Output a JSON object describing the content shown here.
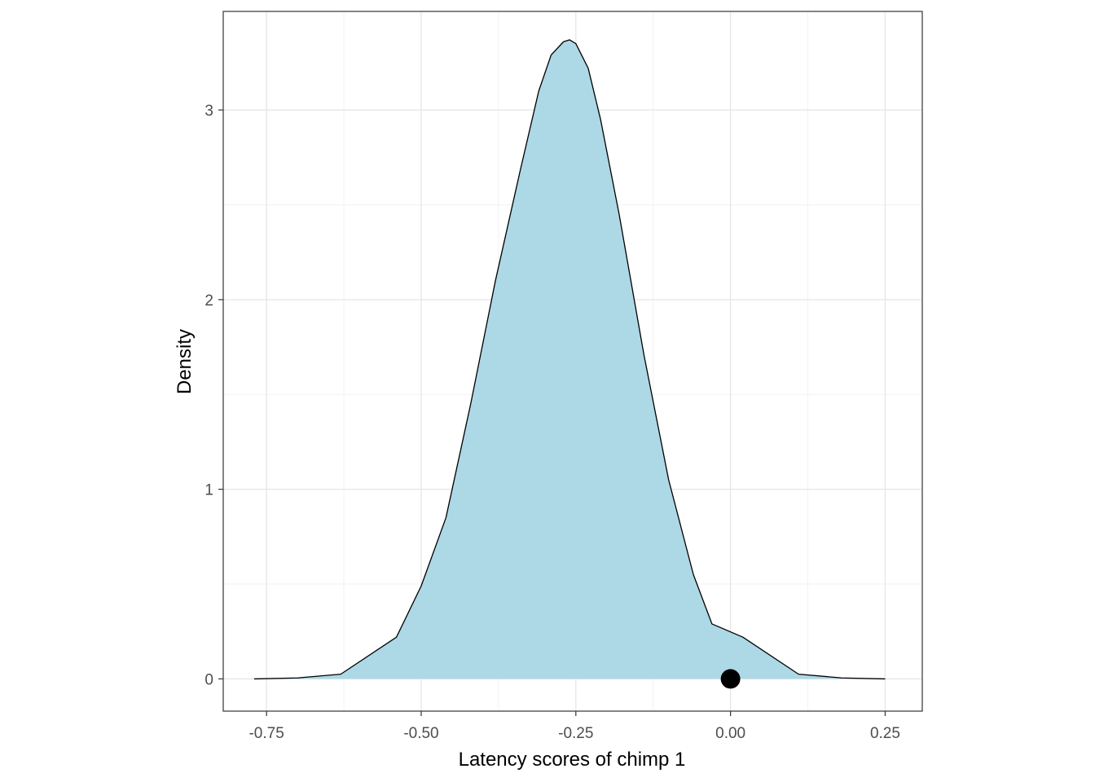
{
  "chart_data": {
    "type": "area",
    "xlabel": "Latency scores of chimp 1",
    "ylabel": "Density",
    "xlim": [
      -0.82,
      0.31
    ],
    "ylim": [
      -0.17,
      3.52
    ],
    "x_major_ticks": [
      -0.75,
      -0.5,
      -0.25,
      0.0,
      0.25
    ],
    "x_tick_labels": [
      "-0.75",
      "-0.50",
      "-0.25",
      "0.00",
      "0.25"
    ],
    "x_minor_ticks": [
      -0.625,
      -0.375,
      -0.125,
      0.125
    ],
    "y_major_ticks": [
      0,
      1,
      2,
      3
    ],
    "y_tick_labels": [
      "0",
      "1",
      "2",
      "3"
    ],
    "y_minor_ticks": [
      0.5,
      1.5,
      2.5
    ],
    "grid": true,
    "fill_color": "#add8e6",
    "line_color": "#000000",
    "series": [
      {
        "x": [
          -0.77,
          -0.7,
          -0.63,
          -0.54,
          -0.5,
          -0.46,
          -0.42,
          -0.38,
          -0.34,
          -0.31,
          -0.29,
          -0.27,
          -0.26,
          -0.25,
          -0.23,
          -0.21,
          -0.18,
          -0.14,
          -0.1,
          -0.06,
          -0.03,
          0.02,
          0.11,
          0.18,
          0.25
        ],
        "y": [
          0.0,
          0.005,
          0.025,
          0.22,
          0.49,
          0.85,
          1.45,
          2.1,
          2.68,
          3.1,
          3.29,
          3.36,
          3.37,
          3.35,
          3.22,
          2.95,
          2.45,
          1.71,
          1.05,
          0.55,
          0.29,
          0.22,
          0.025,
          0.005,
          0.0
        ]
      }
    ],
    "point": {
      "x": 0.0,
      "y": 0.0,
      "color": "#000000"
    }
  }
}
